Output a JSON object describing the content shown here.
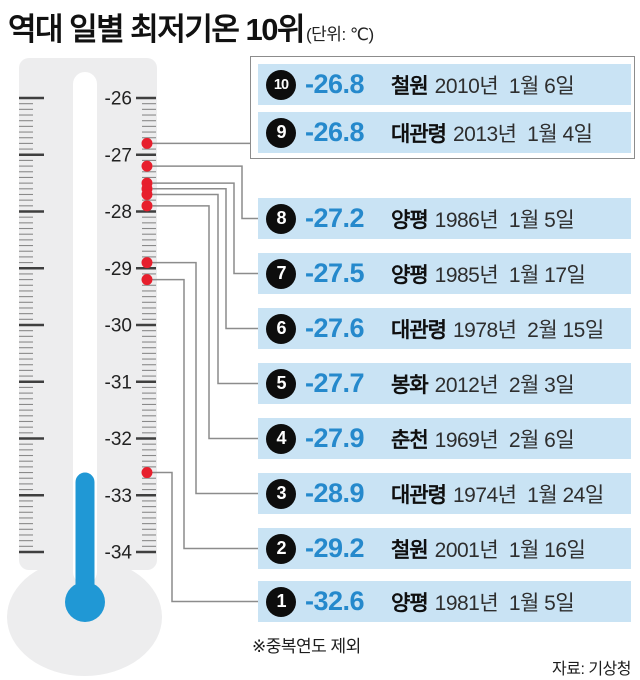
{
  "header": {
    "title": "역대 일별 최저기온 10위",
    "unit": "(단위: ℃)"
  },
  "notes": {
    "dedup": "※중복연도 제외",
    "source": "자료: 기상청"
  },
  "colors": {
    "box_bg": "#c9e3f4",
    "temp_text_blue": "#2589cc",
    "liquid_blue": "#2098d5",
    "dot_red": "#e71f2d",
    "badge_black": "#0d0d0d",
    "thermo_body_gray": "#ededee",
    "connector_gray": "#8c8c8c"
  },
  "chart_data": {
    "type": "thermometer-ranking",
    "title": "역대 일별 최저기온 10위",
    "unit": "℃",
    "axis": {
      "ticks": [
        -26,
        -27,
        -28,
        -29,
        -30,
        -31,
        -32,
        -33,
        -34
      ],
      "minor_step": 0.1,
      "range": [
        -26,
        -34
      ]
    },
    "thermometer_reading": -32.6,
    "records": [
      {
        "rank": 10,
        "temp": -26.8,
        "location": "철원",
        "year_date": "2010년  1월 6일"
      },
      {
        "rank": 9,
        "temp": -26.8,
        "location": "대관령",
        "year_date": "2013년  1월 4일"
      },
      {
        "rank": 8,
        "temp": -27.2,
        "location": "양평",
        "year_date": "1986년  1월 5일"
      },
      {
        "rank": 7,
        "temp": -27.5,
        "location": "양평",
        "year_date": "1985년  1월 17일"
      },
      {
        "rank": 6,
        "temp": -27.6,
        "location": "대관령",
        "year_date": "1978년  2월 15일"
      },
      {
        "rank": 5,
        "temp": -27.7,
        "location": "봉화",
        "year_date": "2012년  2월 3일"
      },
      {
        "rank": 4,
        "temp": -27.9,
        "location": "춘천",
        "year_date": "1969년  2월 6일"
      },
      {
        "rank": 3,
        "temp": -28.9,
        "location": "대관령",
        "year_date": "1974년  1월 24일"
      },
      {
        "rank": 2,
        "temp": -29.2,
        "location": "철원",
        "year_date": "2001년  1월 16일"
      },
      {
        "rank": 1,
        "temp": -32.6,
        "location": "양평",
        "year_date": "1981년  1월 5일"
      }
    ]
  }
}
